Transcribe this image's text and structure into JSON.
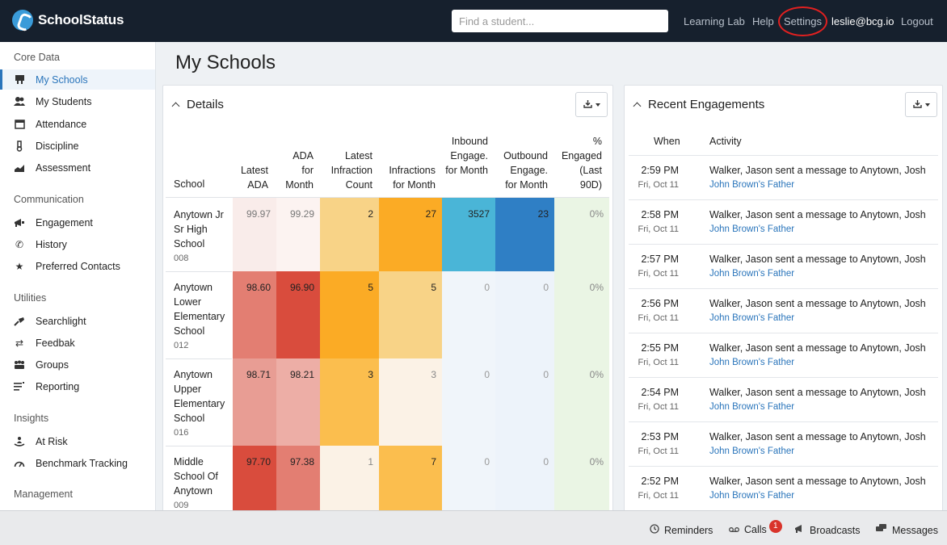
{
  "header": {
    "logo_text": "SchoolStatus",
    "search_placeholder": "Find a student...",
    "nav": [
      "Learning Lab",
      "Help",
      "Settings"
    ],
    "user": "leslie@bcg.io",
    "logout": "Logout"
  },
  "sidebar": {
    "sections": [
      {
        "title": "Core Data",
        "items": [
          {
            "label": "My Schools",
            "icon": "school-icon",
            "active": true
          },
          {
            "label": "My Students",
            "icon": "students-icon"
          },
          {
            "label": "Attendance",
            "icon": "calendar-icon"
          },
          {
            "label": "Discipline",
            "icon": "discipline-icon"
          },
          {
            "label": "Assessment",
            "icon": "chart-icon"
          }
        ]
      },
      {
        "title": "Communication",
        "items": [
          {
            "label": "Engagement",
            "icon": "engagement-icon"
          },
          {
            "label": "History",
            "icon": "phone-icon"
          },
          {
            "label": "Preferred Contacts",
            "icon": "star-icon"
          }
        ]
      },
      {
        "title": "Utilities",
        "items": [
          {
            "label": "Searchlight",
            "icon": "searchlight-icon"
          },
          {
            "label": "Feedbak",
            "icon": "feedback-icon"
          },
          {
            "label": "Groups",
            "icon": "groups-icon"
          },
          {
            "label": "Reporting",
            "icon": "reporting-icon"
          }
        ]
      },
      {
        "title": "Insights",
        "items": [
          {
            "label": "At Risk",
            "icon": "at-risk-icon"
          },
          {
            "label": "Benchmark Tracking",
            "icon": "gauge-icon"
          }
        ]
      },
      {
        "title": "Management",
        "items": []
      }
    ]
  },
  "main": {
    "title": "My Schools",
    "details": {
      "title": "Details",
      "columns": [
        "School",
        "Latest ADA",
        "ADA for Month",
        "Latest Infraction Count",
        "Infractions for Month",
        "Inbound Engage. for Month",
        "Outbound Engage. for Month",
        "% Engaged (Last 90D)"
      ],
      "rows": [
        {
          "school": "Anytown Jr Sr High School",
          "code": "008",
          "values": [
            "99.97",
            "99.29",
            "2",
            "27",
            "3527",
            "23",
            "0%"
          ]
        },
        {
          "school": "Anytown Lower Elementary School",
          "code": "012",
          "values": [
            "98.60",
            "96.90",
            "5",
            "5",
            "0",
            "0",
            "0%"
          ]
        },
        {
          "school": "Anytown Upper Elementary School",
          "code": "016",
          "values": [
            "98.71",
            "98.21",
            "3",
            "3",
            "0",
            "0",
            "0%"
          ]
        },
        {
          "school": "Middle School Of Anytown",
          "code": "009",
          "values": [
            "97.70",
            "97.38",
            "1",
            "7",
            "0",
            "0",
            "0%"
          ]
        }
      ]
    },
    "engagements": {
      "title": "Recent Engagements",
      "columns": [
        "When",
        "Activity"
      ],
      "rows": [
        {
          "time": "2:59 PM",
          "date": "Fri, Oct 11",
          "activity": "Walker, Jason sent a message to Anytown, Josh",
          "contact": "John Brown's Father"
        },
        {
          "time": "2:58 PM",
          "date": "Fri, Oct 11",
          "activity": "Walker, Jason sent a message to Anytown, Josh",
          "contact": "John Brown's Father"
        },
        {
          "time": "2:57 PM",
          "date": "Fri, Oct 11",
          "activity": "Walker, Jason sent a message to Anytown, Josh",
          "contact": "John Brown's Father"
        },
        {
          "time": "2:56 PM",
          "date": "Fri, Oct 11",
          "activity": "Walker, Jason sent a message to Anytown, Josh",
          "contact": "John Brown's Father"
        },
        {
          "time": "2:55 PM",
          "date": "Fri, Oct 11",
          "activity": "Walker, Jason sent a message to Anytown, Josh",
          "contact": "John Brown's Father"
        },
        {
          "time": "2:54 PM",
          "date": "Fri, Oct 11",
          "activity": "Walker, Jason sent a message to Anytown, Josh",
          "contact": "John Brown's Father"
        },
        {
          "time": "2:53 PM",
          "date": "Fri, Oct 11",
          "activity": "Walker, Jason sent a message to Anytown, Josh",
          "contact": "John Brown's Father"
        },
        {
          "time": "2:52 PM",
          "date": "Fri, Oct 11",
          "activity": "Walker, Jason sent a message to Anytown, Josh",
          "contact": "John Brown's Father"
        }
      ]
    }
  },
  "bottombar": {
    "reminders": "Reminders",
    "calls": "Calls",
    "calls_badge": "1",
    "broadcasts": "Broadcasts",
    "messages": "Messages"
  },
  "colors": {
    "header_bg": "#16202d",
    "accent": "#2a75bb",
    "highlight_ring": "#e02020"
  }
}
